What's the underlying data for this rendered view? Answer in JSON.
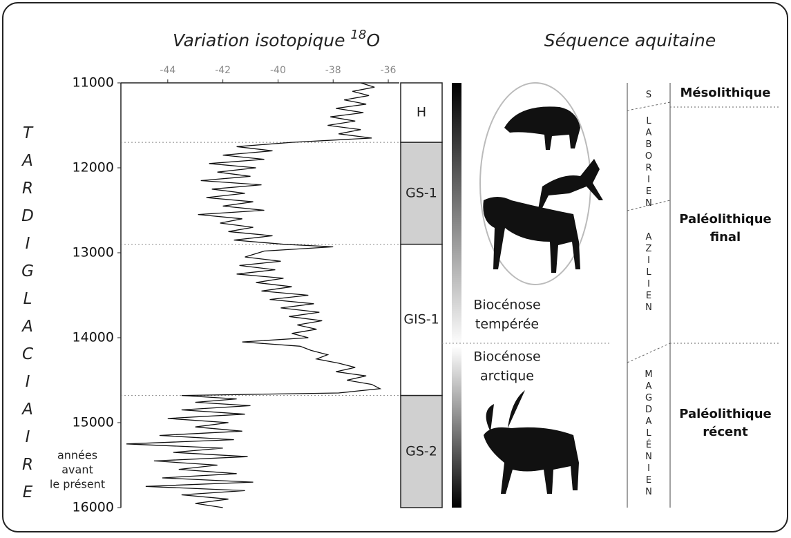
{
  "chart_data": {
    "type": "line",
    "title": "Variation isotopique",
    "title_mass": "18",
    "title_element": "O",
    "xlim": [
      -45.7,
      -35.6
    ],
    "xticks": [
      -44,
      -42,
      -40,
      -38,
      -36
    ],
    "ylim": [
      11000,
      16000
    ],
    "yticks": [
      11000,
      12000,
      13000,
      14000,
      15000,
      16000
    ],
    "y_label": "TARDIGLACIAIRE",
    "y_unit": [
      "années",
      "avant",
      "le présent"
    ],
    "color": "#111",
    "y": [
      11000,
      11050,
      11100,
      11150,
      11200,
      11250,
      11300,
      11350,
      11400,
      11450,
      11500,
      11550,
      11600,
      11650,
      11700,
      11750,
      11800,
      11850,
      11900,
      11950,
      12000,
      12050,
      12100,
      12150,
      12200,
      12250,
      12300,
      12350,
      12400,
      12450,
      12500,
      12550,
      12600,
      12650,
      12700,
      12750,
      12800,
      12850,
      12900,
      12930,
      12980,
      13050,
      13100,
      13150,
      13200,
      13250,
      13300,
      13350,
      13400,
      13450,
      13500,
      13550,
      13600,
      13650,
      13700,
      13750,
      13800,
      13850,
      13900,
      13950,
      14000,
      14050,
      14100,
      14150,
      14200,
      14250,
      14300,
      14350,
      14400,
      14450,
      14500,
      14550,
      14600,
      14650,
      14680,
      14720,
      14760,
      14800,
      14850,
      14900,
      14950,
      15000,
      15050,
      15100,
      15150,
      15200,
      15250,
      15300,
      15350,
      15400,
      15450,
      15500,
      15550,
      15600,
      15650,
      15700,
      15750,
      15800,
      15850,
      15900,
      15950,
      16000
    ],
    "values": [
      -37.0,
      -36.5,
      -37.3,
      -36.7,
      -37.6,
      -36.8,
      -37.9,
      -36.9,
      -38.1,
      -37.2,
      -38.2,
      -37.0,
      -37.8,
      -36.6,
      -39.5,
      -41.5,
      -40.2,
      -42.0,
      -40.5,
      -42.5,
      -40.8,
      -42.2,
      -41.0,
      -42.8,
      -40.6,
      -42.4,
      -41.2,
      -42.6,
      -40.9,
      -42.0,
      -40.5,
      -42.9,
      -41.3,
      -42.1,
      -40.9,
      -41.8,
      -40.2,
      -41.6,
      -39.8,
      -38.0,
      -40.5,
      -41.2,
      -39.9,
      -41.4,
      -40.1,
      -41.5,
      -39.8,
      -40.8,
      -39.5,
      -40.6,
      -38.9,
      -40.3,
      -38.7,
      -39.9,
      -38.5,
      -39.6,
      -38.4,
      -39.3,
      -38.6,
      -39.5,
      -38.9,
      -41.3,
      -39.2,
      -38.8,
      -38.2,
      -38.6,
      -37.8,
      -37.2,
      -37.9,
      -36.8,
      -37.5,
      -36.6,
      -36.3,
      -37.8,
      -43.5,
      -41.5,
      -43.0,
      -41.0,
      -43.5,
      -41.2,
      -44.0,
      -41.8,
      -43.0,
      -41.3,
      -44.3,
      -41.6,
      -45.5,
      -42.0,
      -43.8,
      -41.1,
      -44.5,
      -42.2,
      -43.6,
      -41.5,
      -44.2,
      -40.9,
      -44.8,
      -41.2,
      -43.5,
      -41.8,
      -43.0,
      -42.0
    ],
    "stages": [
      {
        "label": "H",
        "start": 11000,
        "end": 11700,
        "color": "#ffffff"
      },
      {
        "label": "GS-1",
        "start": 11700,
        "end": 12900,
        "color": "#d0d0d0"
      },
      {
        "label": "GIS-1",
        "start": 12900,
        "end": 14680,
        "color": "#ffffff"
      },
      {
        "label": "GS-2",
        "start": 14680,
        "end": 16000,
        "color": "#d0d0d0"
      }
    ]
  },
  "sequence_title": "Séquence aquitaine",
  "biocenoses": [
    [
      "Biocénose",
      "tempérée"
    ],
    [
      "Biocénose",
      "arctique"
    ]
  ],
  "cultures": [
    "S",
    "LABORIEN",
    "AZILIEN",
    "MAGDALÉNIEN"
  ],
  "periods": [
    [
      "Mésolithique"
    ],
    [
      "Paléolithique",
      "final"
    ],
    [
      "Paléolithique",
      "récent"
    ]
  ]
}
